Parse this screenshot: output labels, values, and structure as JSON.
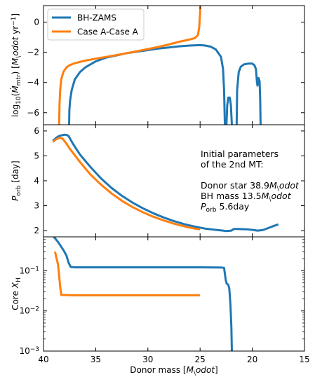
{
  "chart_data": [
    {
      "type": "line",
      "ylabel": "log$_{10}$($\\dot{M}_{\\rm mtr}$) [$M_\\odot$ yr$^{-1}$]",
      "ylim": [
        -6.8,
        1.1
      ],
      "yticks": [
        -6,
        -4,
        -2,
        0
      ],
      "ytick_labels": [
        "−6",
        "−4",
        "−2",
        "0"
      ],
      "xlim": [
        40,
        15
      ],
      "legend": {
        "placement": "top-left",
        "entries": [
          "BH-ZAMS",
          "Case A-Case A"
        ]
      },
      "series": [
        {
          "name": "BH-ZAMS",
          "color": "#1f77b4",
          "segments": [
            [
              [
                37.55,
                -6.9
              ],
              [
                37.52,
                -5.8
              ],
              [
                37.45,
                -5.2
              ],
              [
                37.3,
                -4.5
              ],
              [
                37.0,
                -3.8
              ],
              [
                36.5,
                -3.3
              ],
              [
                36.0,
                -3.0
              ],
              [
                35.0,
                -2.6
              ],
              [
                34.0,
                -2.35
              ],
              [
                33.0,
                -2.2
              ],
              [
                32.0,
                -2.05
              ],
              [
                31.0,
                -1.95
              ],
              [
                30.0,
                -1.85
              ],
              [
                29.0,
                -1.75
              ],
              [
                28.0,
                -1.68
              ],
              [
                27.0,
                -1.6
              ],
              [
                26.0,
                -1.55
              ],
              [
                25.0,
                -1.52
              ],
              [
                24.5,
                -1.55
              ],
              [
                24.0,
                -1.62
              ],
              [
                23.5,
                -1.8
              ],
              [
                23.0,
                -2.3
              ],
              [
                22.8,
                -3.1
              ],
              [
                22.7,
                -4.5
              ],
              [
                22.62,
                -6.9
              ]
            ],
            [
              [
                22.48,
                -6.9
              ],
              [
                22.4,
                -5.5
              ],
              [
                22.3,
                -5.0
              ],
              [
                22.15,
                -5.0
              ],
              [
                22.05,
                -5.5
              ],
              [
                21.95,
                -6.9
              ]
            ],
            [
              [
                21.5,
                -6.9
              ],
              [
                21.45,
                -4.5
              ],
              [
                21.3,
                -3.3
              ],
              [
                21.1,
                -2.95
              ],
              [
                20.8,
                -2.8
              ],
              [
                20.4,
                -2.75
              ],
              [
                20.0,
                -2.75
              ],
              [
                19.8,
                -2.85
              ],
              [
                19.65,
                -3.1
              ],
              [
                19.55,
                -4.0
              ],
              [
                19.5,
                -4.2
              ],
              [
                19.4,
                -3.7
              ],
              [
                19.3,
                -3.9
              ],
              [
                19.25,
                -5.0
              ],
              [
                19.2,
                -6.9
              ]
            ]
          ]
        },
        {
          "name": "Case A-Case A",
          "color": "#ff7f0e",
          "segments": [
            [
              [
                38.5,
                -6.9
              ],
              [
                38.47,
                -5.5
              ],
              [
                38.4,
                -4.5
              ],
              [
                38.3,
                -3.8
              ],
              [
                38.1,
                -3.3
              ],
              [
                37.8,
                -3.0
              ],
              [
                37.5,
                -2.85
              ],
              [
                37.0,
                -2.72
              ],
              [
                36.0,
                -2.55
              ],
              [
                35.0,
                -2.42
              ],
              [
                34.0,
                -2.3
              ],
              [
                33.0,
                -2.18
              ],
              [
                32.0,
                -2.05
              ],
              [
                31.0,
                -1.92
              ],
              [
                30.0,
                -1.78
              ],
              [
                29.0,
                -1.64
              ],
              [
                28.0,
                -1.48
              ],
              [
                27.0,
                -1.3
              ],
              [
                26.0,
                -1.15
              ],
              [
                25.5,
                -1.05
              ],
              [
                25.2,
                -0.85
              ],
              [
                25.08,
                -0.3
              ],
              [
                25.0,
                0.6
              ],
              [
                24.98,
                1.05
              ]
            ]
          ]
        }
      ]
    },
    {
      "type": "line",
      "ylabel": "$P_{\\rm orb}$ [day]",
      "ylim": [
        1.75,
        6.25
      ],
      "yticks": [
        2,
        3,
        4,
        5,
        6
      ],
      "ytick_labels": [
        "2",
        "3",
        "4",
        "5",
        "6"
      ],
      "xlim": [
        40,
        15
      ],
      "annotation": {
        "lines": [
          "Initial parameters",
          "of the 2nd MT:",
          "",
          "Donor star 38.9$M_\\odot$",
          "BH mass 13.5$M_\\odot$",
          "$P_{\\rm orb}$ 5.6day"
        ]
      },
      "series": [
        {
          "name": "BH-ZAMS",
          "color": "#1f77b4",
          "points": [
            [
              39.1,
              5.6
            ],
            [
              38.8,
              5.72
            ],
            [
              38.5,
              5.8
            ],
            [
              38.0,
              5.85
            ],
            [
              37.8,
              5.84
            ],
            [
              37.6,
              5.8
            ],
            [
              37.2,
              5.5
            ],
            [
              36.5,
              5.05
            ],
            [
              35.5,
              4.55
            ],
            [
              34.5,
              4.1
            ],
            [
              33.5,
              3.72
            ],
            [
              32.5,
              3.4
            ],
            [
              31.5,
              3.13
            ],
            [
              30.5,
              2.9
            ],
            [
              29.5,
              2.7
            ],
            [
              28.5,
              2.53
            ],
            [
              27.5,
              2.38
            ],
            [
              26.5,
              2.26
            ],
            [
              25.5,
              2.16
            ],
            [
              24.5,
              2.08
            ],
            [
              23.5,
              2.03
            ],
            [
              22.8,
              2.0
            ],
            [
              22.5,
              1.98
            ],
            [
              22.0,
              2.0
            ],
            [
              21.8,
              2.06
            ],
            [
              21.5,
              2.07
            ],
            [
              21.0,
              2.06
            ],
            [
              20.5,
              2.05
            ],
            [
              20.0,
              2.03
            ],
            [
              19.5,
              2.0
            ],
            [
              19.0,
              2.02
            ],
            [
              18.5,
              2.1
            ],
            [
              18.0,
              2.18
            ],
            [
              17.5,
              2.25
            ]
          ]
        },
        {
          "name": "Case A-Case A",
          "color": "#ff7f0e",
          "points": [
            [
              39.1,
              5.56
            ],
            [
              38.8,
              5.66
            ],
            [
              38.5,
              5.72
            ],
            [
              38.2,
              5.7
            ],
            [
              37.9,
              5.55
            ],
            [
              37.5,
              5.3
            ],
            [
              36.5,
              4.75
            ],
            [
              35.5,
              4.25
            ],
            [
              34.5,
              3.85
            ],
            [
              33.5,
              3.5
            ],
            [
              32.5,
              3.2
            ],
            [
              31.5,
              2.95
            ],
            [
              30.5,
              2.74
            ],
            [
              29.5,
              2.56
            ],
            [
              28.5,
              2.41
            ],
            [
              27.5,
              2.28
            ],
            [
              26.5,
              2.17
            ],
            [
              25.5,
              2.08
            ],
            [
              25.0,
              2.05
            ]
          ]
        }
      ]
    },
    {
      "type": "line",
      "ylabel": "Core $X_{\\rm H}$",
      "yscale": "log",
      "ylim": [
        0.001,
        0.7
      ],
      "yticks": [
        0.001,
        0.01,
        0.1
      ],
      "ytick_labels": [
        "10$^{-3}$",
        "10$^{-2}$",
        "10$^{-1}$"
      ],
      "xlim": [
        40,
        15
      ],
      "xticks": [
        40,
        35,
        30,
        25,
        20,
        15
      ],
      "xtick_labels": [
        "40",
        "35",
        "30",
        "25",
        "20",
        "15"
      ],
      "xlabel": "Donor mass [$M_\\odot$]",
      "series": [
        {
          "name": "BH-ZAMS",
          "color": "#1f77b4",
          "points": [
            [
              39.1,
              0.75
            ],
            [
              38.6,
              0.52
            ],
            [
              38.1,
              0.33
            ],
            [
              37.8,
              0.24
            ],
            [
              37.6,
              0.16
            ],
            [
              37.4,
              0.125
            ],
            [
              37.0,
              0.122
            ],
            [
              30.0,
              0.122
            ],
            [
              25.0,
              0.122
            ],
            [
              23.0,
              0.121
            ],
            [
              22.7,
              0.118
            ],
            [
              22.55,
              0.06
            ],
            [
              22.45,
              0.048
            ],
            [
              22.3,
              0.045
            ],
            [
              22.2,
              0.035
            ],
            [
              22.1,
              0.015
            ],
            [
              22.0,
              0.004
            ],
            [
              21.95,
              0.0008
            ]
          ]
        },
        {
          "name": "Case A-Case A",
          "color": "#ff7f0e",
          "points": [
            [
              38.9,
              0.3
            ],
            [
              38.6,
              0.14
            ],
            [
              38.4,
              0.04
            ],
            [
              38.3,
              0.025
            ],
            [
              37.0,
              0.0245
            ],
            [
              30.0,
              0.0245
            ],
            [
              25.0,
              0.0245
            ]
          ]
        }
      ]
    }
  ]
}
